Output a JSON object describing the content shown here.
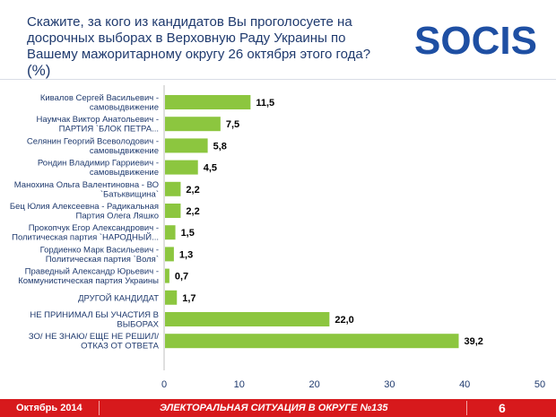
{
  "header": {
    "question": "Скажите, за кого из кандидатов Вы проголосуете на досрочных выборах в Верховную Раду Украины по Вашему мажоритарному округу 26 октября этого года?",
    "unit": "(%)",
    "logo_text": "SOCIS"
  },
  "colors": {
    "bar": "#8cc63f",
    "title": "#1f3a6e",
    "footer": "#d7191c",
    "logo": "#1e4fa3"
  },
  "footer": {
    "date": "Октябрь 2014",
    "section": "ЭЛЕКТОРАЛЬНАЯ СИТУАЦИЯ В ОКРУГЕ №135",
    "page": "6"
  },
  "chart_data": {
    "type": "bar",
    "orientation": "horizontal",
    "categories": [
      [
        "Кивалов Сергей Васильевич -",
        "самовыдвижение"
      ],
      [
        "Наумчак Виктор Анатольевич -",
        "ПАРТИЯ `БЛОК ПЕТРА..."
      ],
      [
        "Селянин Георгий Всеволодович -",
        "самовыдвижение"
      ],
      [
        "Рондин Владимир Гарриевич -",
        "самовыдвижение"
      ],
      [
        "Манохина Ольга Валентиновна - ВО",
        "`Батьквищина`"
      ],
      [
        "Бец Юлия Алексеевна - Радикальная",
        "Партия Олега Ляшко"
      ],
      [
        "Прокопчук Егор Александрович -",
        "Политическая партия `НАРОДНЫЙ..."
      ],
      [
        "Гордиенко Марк Васильевич -",
        "Политическая партия `Воля`"
      ],
      [
        "Праведный Александр Юрьевич -",
        "Коммунистическая партия Украины"
      ],
      [
        "ДРУГОЙ КАНДИДАТ"
      ],
      [
        "НЕ ПРИНИМАЛ БЫ УЧАСТИЯ В",
        "ВЫБОРАХ"
      ],
      [
        "ЗО/ НЕ ЗНАЮ/ ЕЩЕ НЕ РЕШИЛ/",
        "ОТКАЗ ОТ ОТВЕТА"
      ]
    ],
    "values": [
      11.5,
      7.5,
      5.8,
      4.5,
      2.2,
      2.2,
      1.5,
      1.3,
      0.7,
      1.7,
      22.0,
      39.2
    ],
    "value_labels": [
      "11,5",
      "7,5",
      "5,8",
      "4,5",
      "2,2",
      "2,2",
      "1,5",
      "1,3",
      "0,7",
      "1,7",
      "22,0",
      "39,2"
    ],
    "xlim": [
      0,
      50
    ],
    "xticks": [
      0,
      10,
      20,
      30,
      40,
      50
    ],
    "title": "Скажите, за кого из кандидатов Вы проголосуете на досрочных выборах в Верховную Раду Украины по Вашему мажоритарному округу 26 октября этого года?",
    "xlabel": "",
    "ylabel": "",
    "grid": false
  }
}
